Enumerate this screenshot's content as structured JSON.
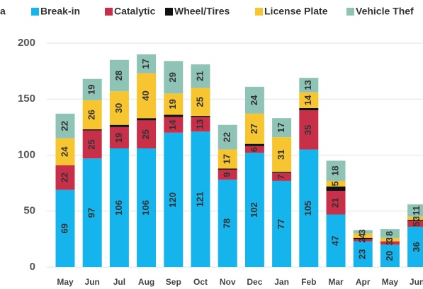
{
  "chart_data": {
    "type": "stacked_bar",
    "legend_fragment": "a",
    "categories": [
      "May",
      "Jun",
      "Jul",
      "Aug",
      "Sep",
      "Oct",
      "Nov",
      "Dec",
      "Jan",
      "Feb",
      "Mar",
      "Apr",
      "May",
      "Jun"
    ],
    "series": [
      {
        "name": "Break-in",
        "color": "#16b4ec",
        "labeled": true,
        "values": [
          69,
          97,
          106,
          106,
          120,
          121,
          78,
          102,
          77,
          105,
          47,
          23,
          20,
          36
        ]
      },
      {
        "name": "Catalytic",
        "color": "#c8304a",
        "labeled": true,
        "values": [
          22,
          25,
          19,
          25,
          14,
          13,
          9,
          6,
          7,
          35,
          21,
          2,
          3,
          5
        ]
      },
      {
        "name": "Wheel/Tires",
        "color": "#111111",
        "labeled": false,
        "values": [
          0,
          1,
          2,
          2,
          2,
          1,
          1,
          2,
          1,
          2,
          4,
          1,
          0,
          1
        ]
      },
      {
        "name": "License Plate",
        "color": "#f7c52f",
        "labeled": true,
        "values": [
          24,
          26,
          30,
          40,
          19,
          25,
          17,
          27,
          31,
          14,
          5,
          4,
          3,
          3
        ]
      },
      {
        "name": "Vehicle Thef",
        "color": "#8fc3b6",
        "labeled": true,
        "values": [
          22,
          19,
          28,
          17,
          29,
          21,
          22,
          24,
          17,
          13,
          18,
          3,
          8,
          11
        ]
      }
    ],
    "ylim": [
      0,
      200
    ],
    "yticks": [
      0,
      50,
      100,
      150,
      200
    ],
    "grid": true
  }
}
